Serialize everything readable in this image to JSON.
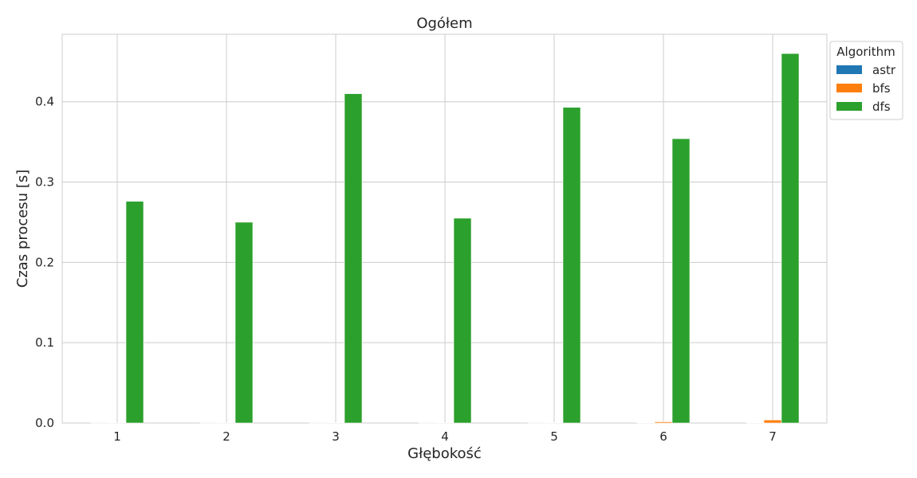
{
  "chart_data": {
    "type": "bar",
    "title": "Ogółem",
    "xlabel": "Głębokość",
    "ylabel": "Czas procesu [s]",
    "categories": [
      "1",
      "2",
      "3",
      "4",
      "5",
      "6",
      "7"
    ],
    "ylim": [
      0,
      0.484
    ],
    "yticks": [
      "0.0",
      "0.1",
      "0.2",
      "0.3",
      "0.4"
    ],
    "grid": true,
    "legend": {
      "title": "Algorithm",
      "placement": "top-right outside"
    },
    "series": [
      {
        "name": "astr",
        "color": "#1f77b4",
        "values": [
          0.0001,
          0.0001,
          0.0001,
          0.0001,
          0.0001,
          0.0002,
          0.0003
        ]
      },
      {
        "name": "bfs",
        "color": "#ff7f0e",
        "values": [
          0.0002,
          0.0002,
          0.0003,
          0.0003,
          0.0004,
          0.0015,
          0.0038
        ]
      },
      {
        "name": "dfs",
        "color": "#2ca02c",
        "values": [
          0.276,
          0.25,
          0.41,
          0.255,
          0.393,
          0.354,
          0.46
        ]
      }
    ]
  }
}
